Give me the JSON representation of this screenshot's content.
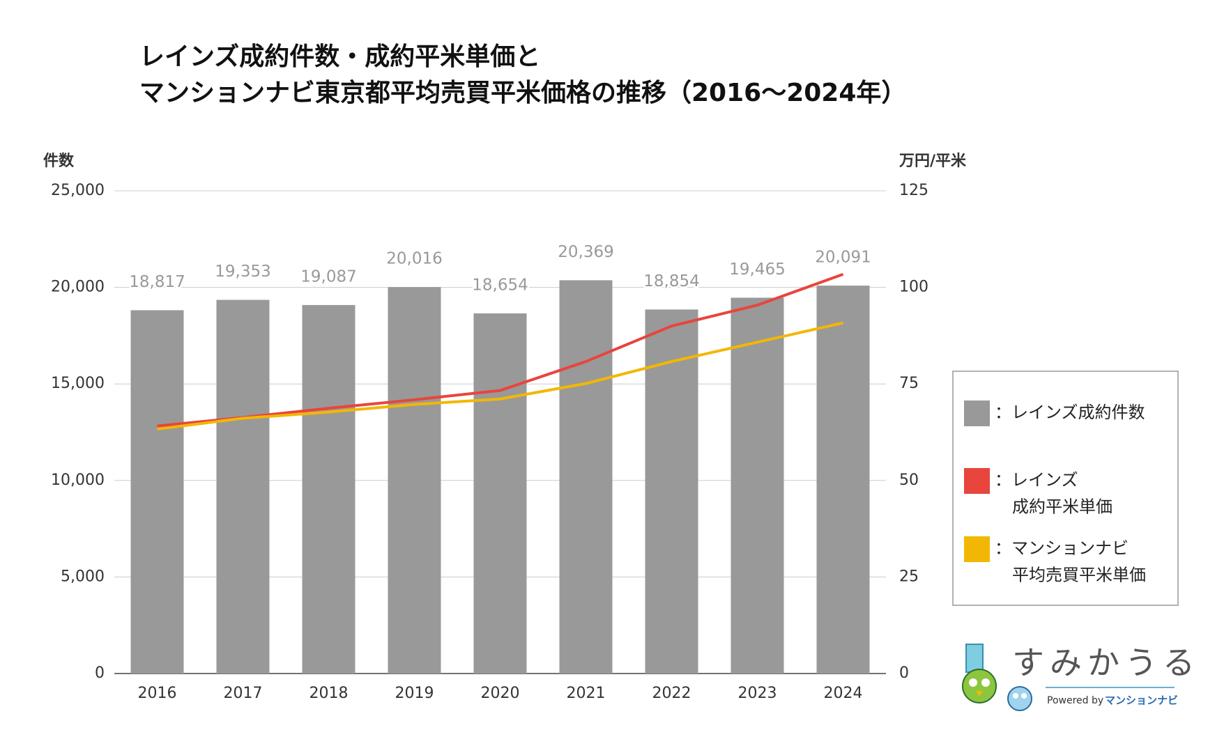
{
  "chart_data": {
    "type": "bar_line",
    "title": "レインズ成約件数・成約平米単価と\nマンションナビ東京都平均売買平米価格の推移（2016〜2024年）",
    "y_label": "件数",
    "y2_label": "万円/平米",
    "categories": [
      "2016",
      "2017",
      "2018",
      "2019",
      "2020",
      "2021",
      "2022",
      "2023",
      "2024"
    ],
    "series": [
      {
        "name": "：レインズ成約件数",
        "type": "bar",
        "color": "#999999",
        "values": [
          18817,
          19353,
          19087,
          20016,
          18654,
          20369,
          18854,
          19465,
          20091
        ],
        "value_labels": [
          "18,817",
          "19,353",
          "19,087",
          "20,016",
          "18,654",
          "20,369",
          "18,854",
          "19,465",
          "20,091"
        ]
      },
      {
        "name": "：レインズ\n成約平米単価",
        "type": "line",
        "axis": "y2",
        "color": "#e8453c",
        "values": [
          64.1,
          66.3,
          68.7,
          70.9,
          73.3,
          80.8,
          90.0,
          95.4,
          103.4
        ]
      },
      {
        "name": "：マンションナビ\n平均売買平米単価",
        "type": "line",
        "axis": "y2",
        "color": "#f2b705",
        "values": [
          63.3,
          66.1,
          67.7,
          69.7,
          71.1,
          75.1,
          80.8,
          85.8,
          90.8
        ]
      }
    ],
    "ylim": [
      0,
      25000
    ],
    "yticks": [
      0,
      {
        "value": 5000,
        "label": "5,000"
      },
      {
        "value": 10000,
        "label": "10,000"
      },
      {
        "value": 15000,
        "label": "15,000"
      },
      {
        "value": 20000,
        "label": "20,000"
      },
      {
        "value": 25000,
        "label": "25,000"
      }
    ],
    "y2lim": [
      0,
      125
    ],
    "y2ticks": [
      0,
      25,
      50,
      75,
      100,
      125
    ],
    "grid": true,
    "legend": "right",
    "logo": {
      "name": "すみかうる",
      "powered": "Powered by",
      "brand": "マンションナビ"
    }
  }
}
